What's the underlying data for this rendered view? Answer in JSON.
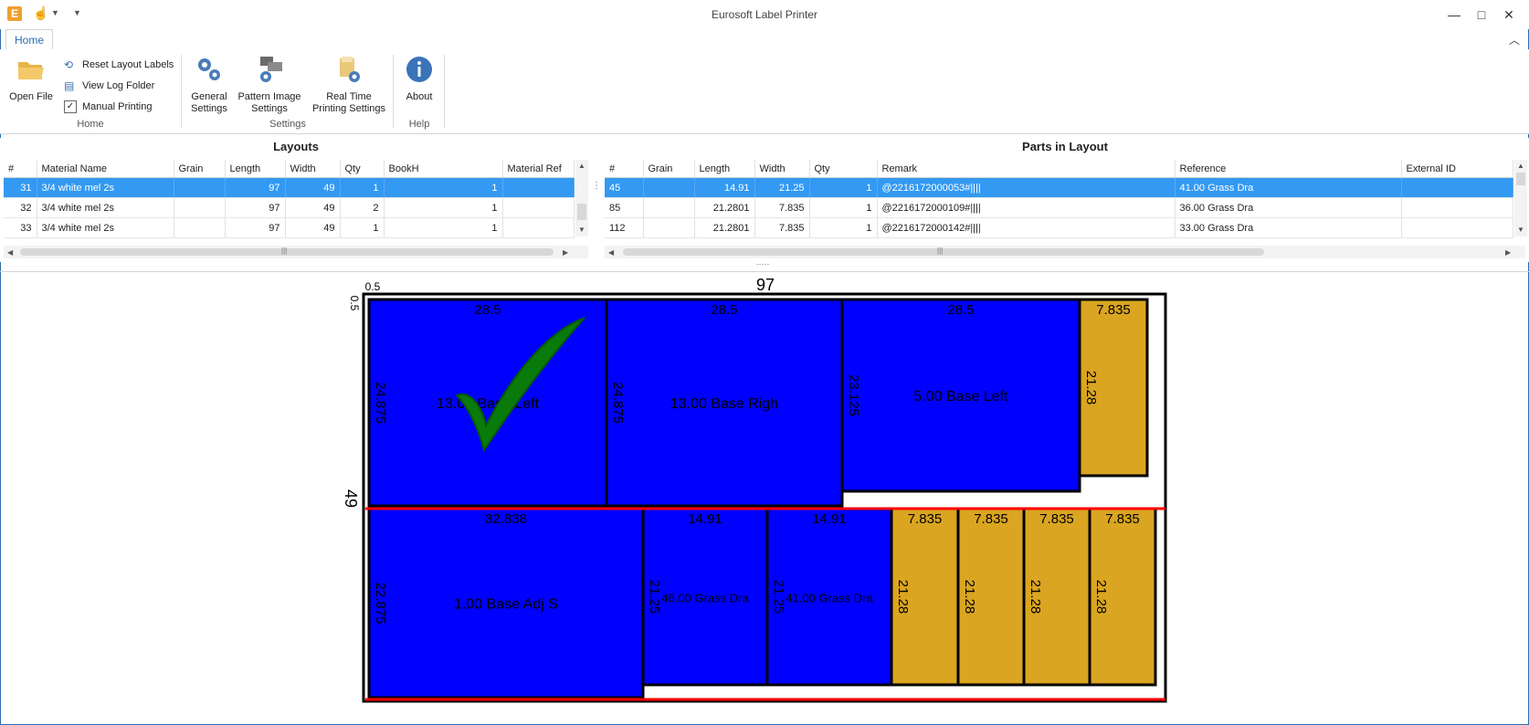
{
  "window": {
    "title": "Eurosoft Label Printer",
    "app_icon_letter": "E"
  },
  "ribbon": {
    "tabs": [
      "Home"
    ],
    "groups": {
      "home": {
        "label": "Home",
        "open_file": "Open File",
        "reset_layout_labels": "Reset Layout Labels",
        "view_log_folder": "View Log Folder",
        "manual_printing": "Manual Printing",
        "manual_printing_checked": "✓"
      },
      "settings": {
        "label": "Settings",
        "general_settings_line1": "General",
        "general_settings_line2": "Settings",
        "pattern_image_line1": "Pattern Image",
        "pattern_image_line2": "Settings",
        "real_time_line1": "Real Time",
        "real_time_line2": "Printing Settings"
      },
      "help": {
        "label": "Help",
        "about": "About"
      }
    }
  },
  "layouts": {
    "title": "Layouts",
    "columns": [
      "#",
      "Material Name",
      "Grain",
      "Length",
      "Width",
      "Qty",
      "BookH",
      "Material Ref"
    ],
    "rows": [
      [
        "31",
        "3/4 white mel 2s",
        "",
        "97",
        "49",
        "1",
        "1",
        ""
      ],
      [
        "32",
        "3/4 white mel 2s",
        "",
        "97",
        "49",
        "2",
        "1",
        ""
      ],
      [
        "33",
        "3/4 white mel 2s",
        "",
        "97",
        "49",
        "1",
        "1",
        ""
      ]
    ],
    "selected_row": 0
  },
  "parts": {
    "title": "Parts in Layout",
    "columns": [
      "#",
      "Grain",
      "Length",
      "Width",
      "Qty",
      "Remark",
      "Reference",
      "External ID"
    ],
    "rows": [
      [
        "45",
        "",
        "14.91",
        "21.25",
        "1",
        "@2216172000053#||||",
        "41.00 Grass Dra",
        ""
      ],
      [
        "85",
        "",
        "21.2801",
        "7.835",
        "1",
        "@2216172000109#||||",
        "36.00 Grass Dra",
        ""
      ],
      [
        "112",
        "",
        "21.2801",
        "7.835",
        "1",
        "@2216172000142#||||",
        "33.00 Grass Dra",
        ""
      ]
    ],
    "selected_row": 0
  },
  "scroll_glyphs": {
    "up": "▲",
    "down": "▼",
    "left": "◀",
    "right": "▶",
    "grip": "|||",
    "vgrip": "⋮",
    "hgrip": "·····"
  },
  "layout_drawing": {
    "sheet_length": "97",
    "sheet_width": "49",
    "trim_x": "0.5",
    "trim_y": "0.5",
    "status_mark": "check-mark",
    "colors": {
      "primary_part": "#0000ff",
      "secondary_part": "#daa520",
      "cut_line": "#ff0000",
      "check": "#0a7a0a"
    },
    "parts": [
      {
        "w_label": "28.5",
        "h_label": "24.875",
        "name": "13.00 Base Left",
        "color": "blue"
      },
      {
        "w_label": "28.5",
        "h_label": "24.875",
        "name": "13.00 Base Righ",
        "color": "blue"
      },
      {
        "w_label": "28.5",
        "h_label": "23.125",
        "name": "5.00 Base Left",
        "color": "blue"
      },
      {
        "w_label": "7.835",
        "h_label": "21.28",
        "name": "",
        "color": "gold"
      },
      {
        "w_label": "32.838",
        "h_label": "22.875",
        "name": "1.00 Base Adj S",
        "color": "blue"
      },
      {
        "w_label": "14.91",
        "h_label": "21.25",
        "name": "46.00 Grass Dra",
        "color": "blue"
      },
      {
        "w_label": "14.91",
        "h_label": "21.25",
        "name": "41.00 Grass Dra",
        "color": "blue"
      },
      {
        "w_label": "7.835",
        "h_label": "21.28",
        "name": "",
        "color": "gold"
      },
      {
        "w_label": "7.835",
        "h_label": "21.28",
        "name": "",
        "color": "gold"
      },
      {
        "w_label": "7.835",
        "h_label": "21.28",
        "name": "",
        "color": "gold"
      },
      {
        "w_label": "7.835",
        "h_label": "21.28",
        "name": "",
        "color": "gold"
      }
    ]
  }
}
